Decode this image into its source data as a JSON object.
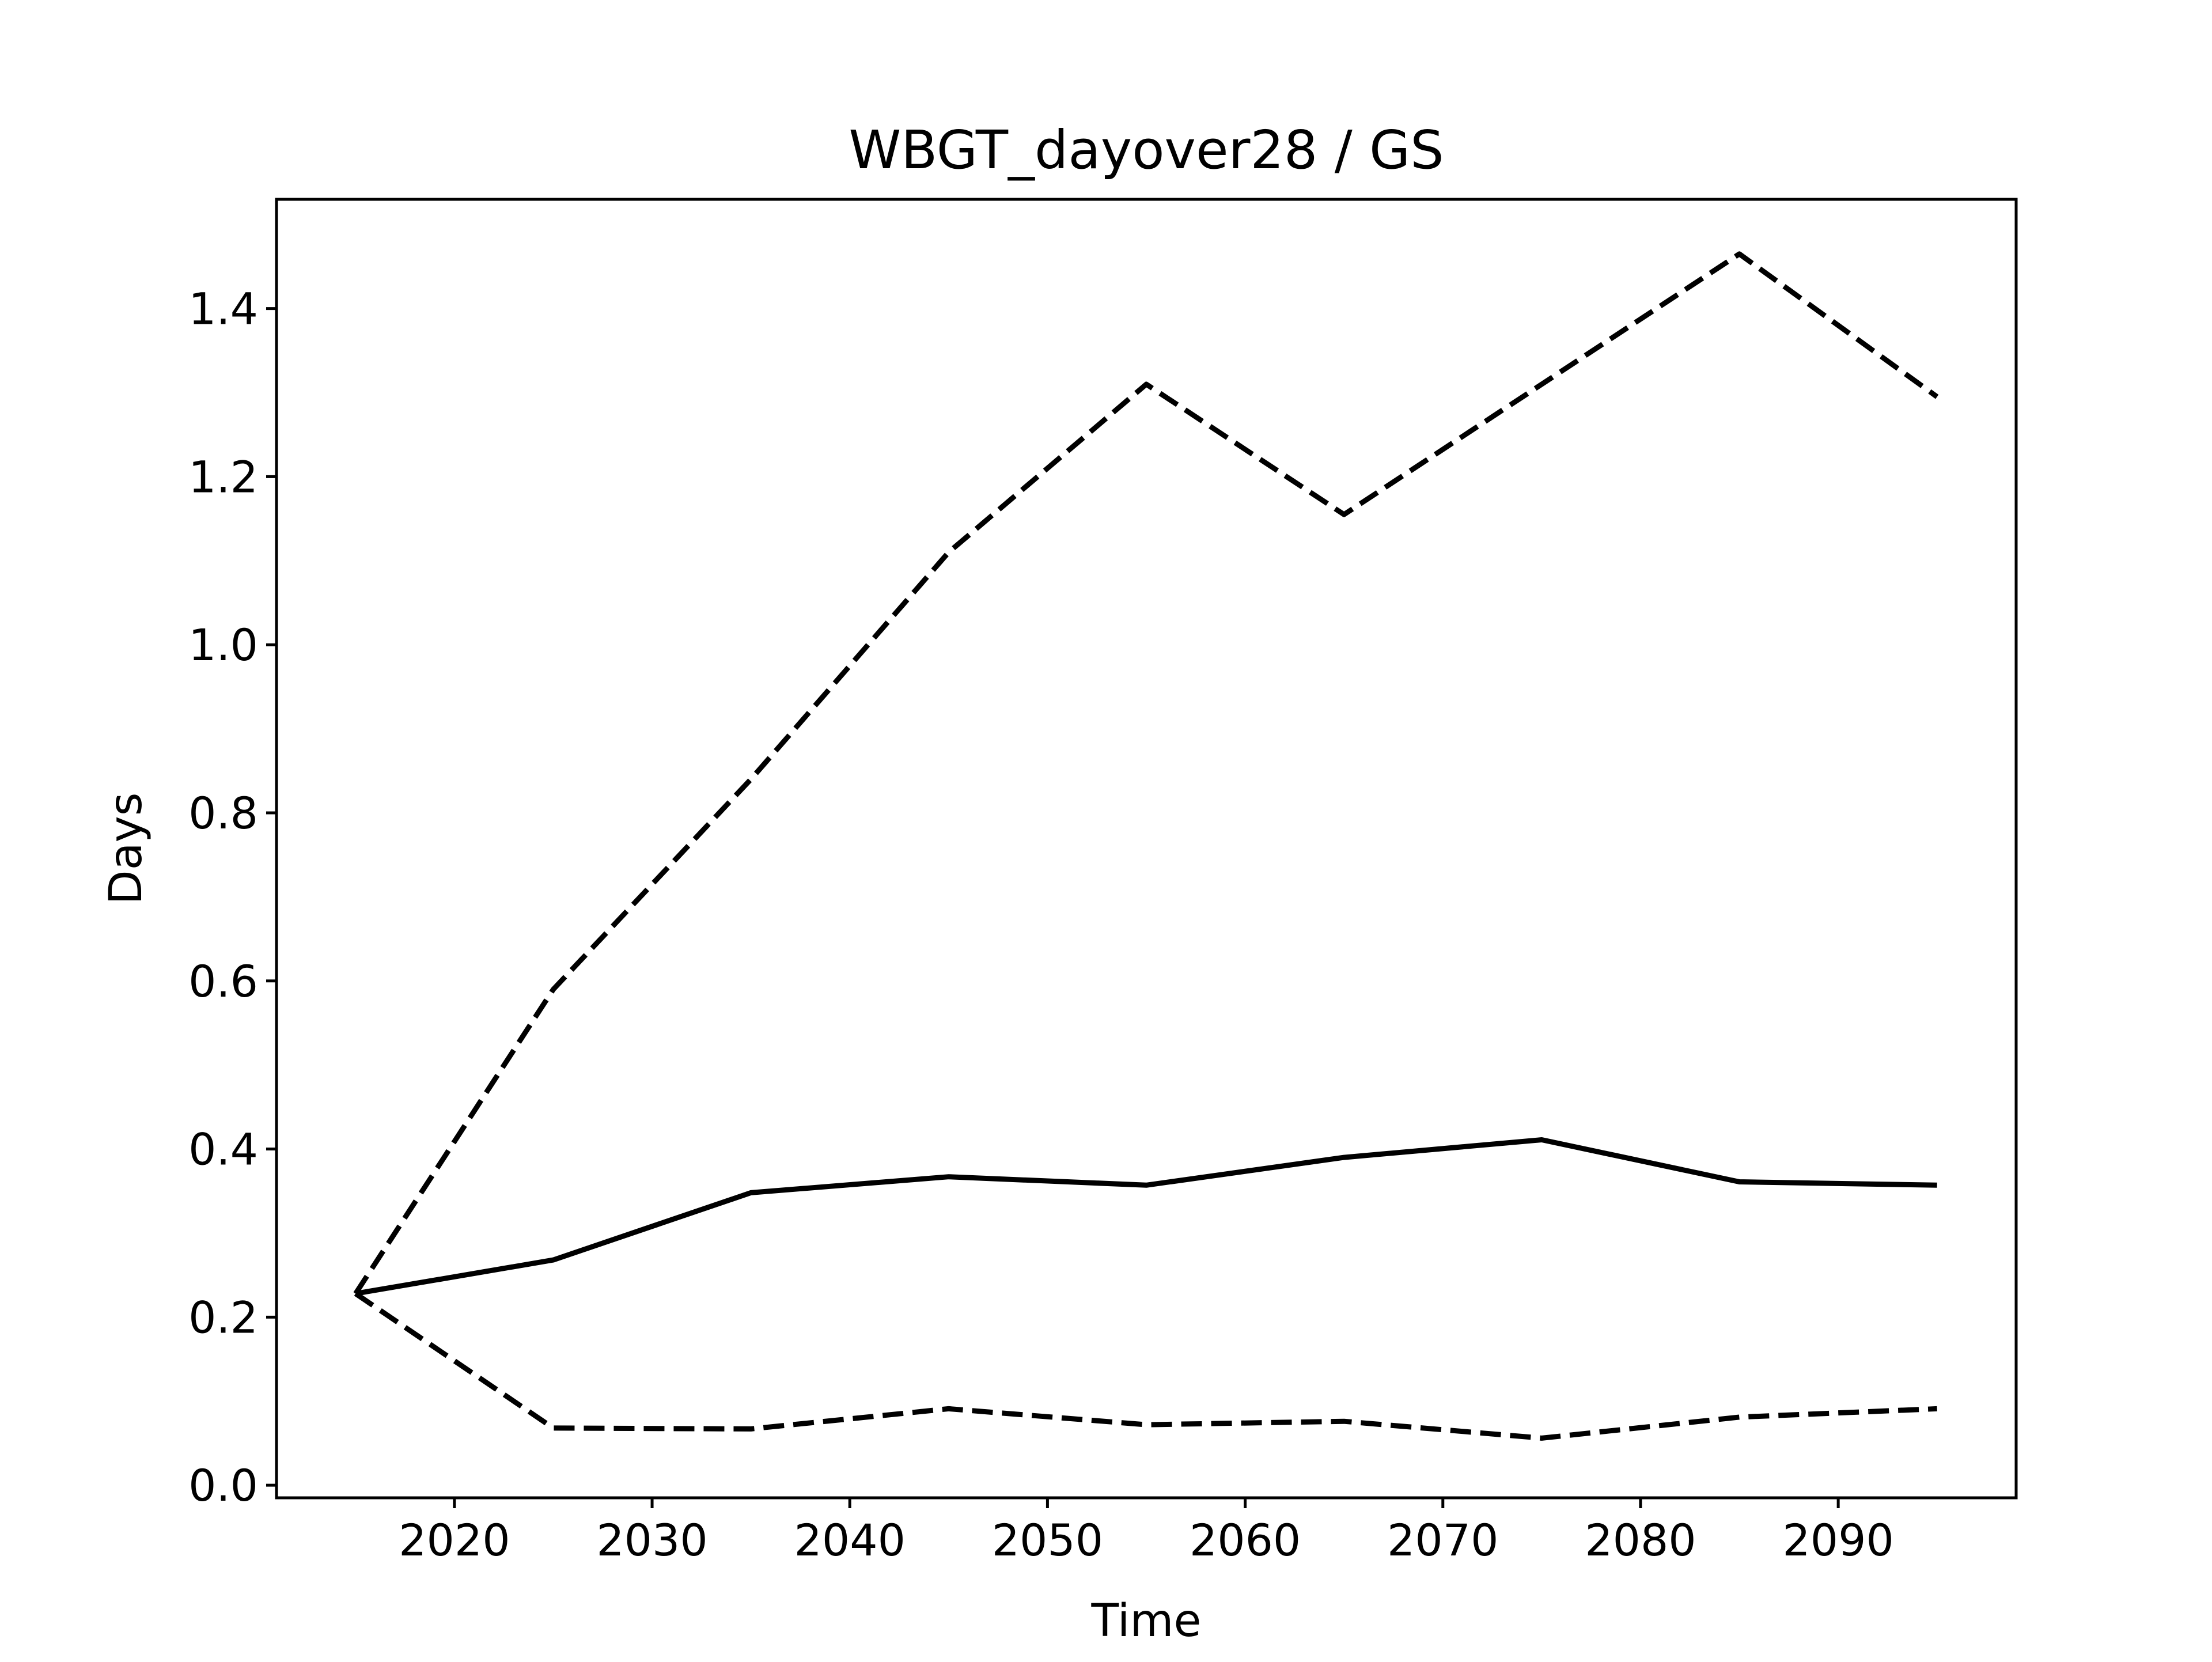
{
  "chart_data": {
    "type": "line",
    "title": "WBGT_dayover28 / GS",
    "xlabel": "Time",
    "ylabel": "Days",
    "xlim": [
      2011,
      2099
    ],
    "ylim": [
      -0.015,
      1.53
    ],
    "xticks": [
      2020,
      2030,
      2040,
      2050,
      2060,
      2070,
      2080,
      2090
    ],
    "xtick_labels": [
      "2020",
      "2030",
      "2040",
      "2050",
      "2060",
      "2070",
      "2080",
      "2090"
    ],
    "yticks": [
      0.0,
      0.2,
      0.4,
      0.6,
      0.8,
      1.0,
      1.2,
      1.4
    ],
    "ytick_labels": [
      "0.0",
      "0.2",
      "0.4",
      "0.6",
      "0.8",
      "1.0",
      "1.2",
      "1.4"
    ],
    "grid": false,
    "x": [
      2015,
      2025,
      2035,
      2045,
      2055,
      2065,
      2075,
      2085,
      2095
    ],
    "series": [
      {
        "style": "solid",
        "values": [
          0.228,
          0.268,
          0.348,
          0.367,
          0.357,
          0.39,
          0.411,
          0.361,
          0.357
        ]
      },
      {
        "style": "dashed",
        "values": [
          0.228,
          0.59,
          0.84,
          1.11,
          1.31,
          1.155,
          1.31,
          1.465,
          1.295
        ]
      },
      {
        "style": "dashed",
        "values": [
          0.228,
          0.068,
          0.067,
          0.091,
          0.072,
          0.076,
          0.056,
          0.081,
          0.091
        ]
      }
    ]
  }
}
